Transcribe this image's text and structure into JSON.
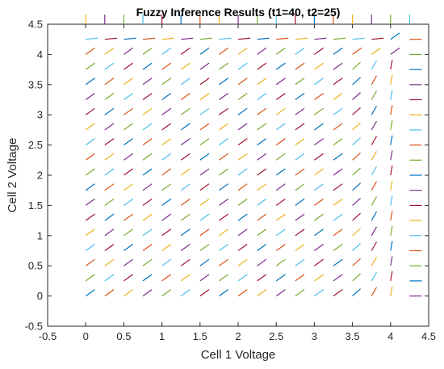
{
  "chart_data": {
    "type": "quiver",
    "title": "Fuzzy Inference Results (t1=40, t2=25)",
    "xlabel": "Cell 1 Voltage",
    "ylabel": "Cell 2 Voltage",
    "xlim": [
      -0.5,
      4.5
    ],
    "ylim": [
      -0.5,
      4.5
    ],
    "xticks": [
      "-0.5",
      "0",
      "0.5",
      "1",
      "1.5",
      "2",
      "2.5",
      "3",
      "3.5",
      "4",
      "4.5"
    ],
    "yticks": [
      "-0.5",
      "0",
      "0.5",
      "1",
      "1.5",
      "2",
      "2.5",
      "3",
      "3.5",
      "4",
      "4.5"
    ],
    "grid": false,
    "grid_x": [
      0,
      4.25,
      0.25
    ],
    "grid_y": [
      0,
      4.5,
      0.25
    ],
    "arrow_length": 0.16,
    "direction_rules": {
      "interior_angle_deg": 42,
      "upper_band_y": 4.0,
      "right_band_x": 4.0,
      "top_row_angle_deg": 90,
      "right_column_angle_deg": 0
    },
    "colors": [
      "#0072BD",
      "#D95319",
      "#EDB120",
      "#7E2F8E",
      "#77AC30",
      "#4DBEEE",
      "#A2142F"
    ]
  }
}
